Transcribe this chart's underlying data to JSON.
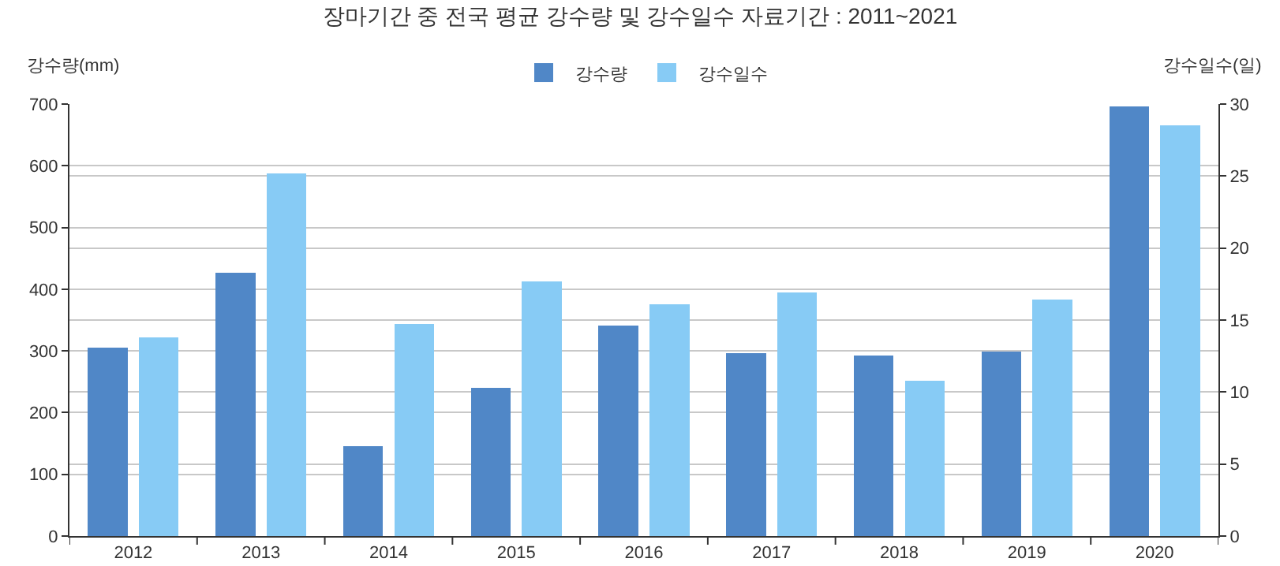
{
  "chart_data": {
    "type": "bar",
    "title": "장마기간 중 전국 평균 강수량 및 강수일수 자료기간 : 2011~2021",
    "ylabel": "강수량(mm)",
    "y2label": "강수일수(일)",
    "categories": [
      "2012",
      "2013",
      "2014",
      "2015",
      "2016",
      "2017",
      "2018",
      "2019",
      "2020"
    ],
    "series": [
      {
        "name": "강수량",
        "color": "#5087c7",
        "values": [
          305,
          427,
          145,
          240,
          341,
          296,
          292,
          299,
          696
        ]
      },
      {
        "name": "강수일수",
        "color": "#87cbf5",
        "axis": "y2",
        "values": [
          13.8,
          25.2,
          14.7,
          17.7,
          16.1,
          16.9,
          10.8,
          16.4,
          28.5
        ]
      }
    ],
    "ylim": [
      0,
      700
    ],
    "yticks": [
      0,
      100,
      200,
      300,
      400,
      500,
      600,
      700
    ],
    "y2lim": [
      0,
      30
    ],
    "y2ticks": [
      0,
      5,
      10,
      15,
      20,
      25,
      30
    ],
    "grid": true,
    "legend": "top"
  }
}
